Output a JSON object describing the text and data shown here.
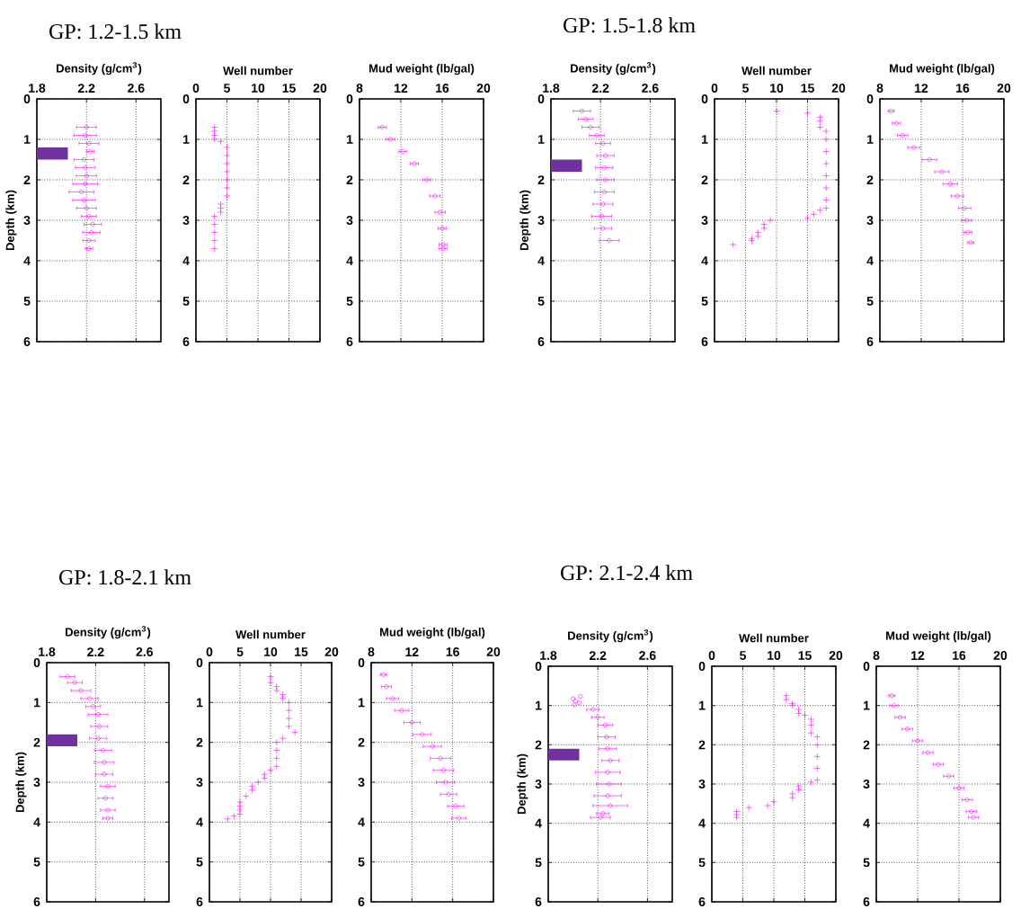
{
  "chart_data": [
    {
      "type": "scatter",
      "title": "GP: 1.2-1.5 km",
      "xlabel": "Density (g/cm$^{3}$)",
      "ylabel": "Depth (km)",
      "xlim": [
        1.8,
        2.8
      ],
      "xticks": [
        1.8,
        2.2,
        2.6
      ],
      "ylim": [
        6,
        0
      ],
      "yticks": [
        0,
        1,
        2,
        3,
        4,
        5,
        6
      ],
      "grid": true,
      "marker": "circle",
      "color": "#ff00ff",
      "x": [
        2.2,
        2.19,
        2.22,
        2.23,
        2.18,
        2.19,
        2.2,
        2.19,
        2.16,
        2.18,
        2.2,
        2.22,
        2.25,
        2.24,
        2.22,
        2.22
      ],
      "values": [
        0.7,
        0.9,
        1.1,
        1.3,
        1.5,
        1.7,
        1.9,
        2.1,
        2.3,
        2.5,
        2.7,
        2.9,
        3.1,
        3.3,
        3.5,
        3.7
      ],
      "xerrors": [
        0.08,
        0.09,
        0.08,
        0.03,
        0.08,
        0.08,
        0.08,
        0.1,
        0.1,
        0.09,
        0.08,
        0.06,
        0.07,
        0.07,
        0.05,
        0.03
      ],
      "bands": [
        {
          "axis": "y",
          "from": 1.2,
          "to": 1.5,
          "color": "#7030a0"
        }
      ]
    },
    {
      "type": "scatter",
      "xlabel": "Well number",
      "xlim": [
        0,
        20
      ],
      "xticks": [
        0,
        5,
        10,
        15,
        20
      ],
      "ylim": [
        6,
        0
      ],
      "yticks": [
        0,
        1,
        2,
        3,
        4,
        5,
        6
      ],
      "grid": true,
      "marker": "cross",
      "color": "#ff00ff",
      "x": [
        3,
        3,
        3,
        3,
        4,
        5,
        5,
        5,
        5,
        5,
        5,
        5,
        4,
        4,
        4,
        3,
        3,
        3,
        3,
        3
      ],
      "values": [
        0.7,
        0.8,
        0.9,
        1.0,
        1.05,
        1.2,
        1.4,
        1.6,
        1.8,
        2.0,
        2.2,
        2.4,
        2.6,
        2.7,
        2.8,
        2.9,
        3.1,
        3.3,
        3.5,
        3.7
      ]
    },
    {
      "type": "scatter",
      "xlabel": "Mud weight (lb/gal)",
      "xlim": [
        8,
        20
      ],
      "xticks": [
        8,
        12,
        16,
        20
      ],
      "ylim": [
        6,
        0
      ],
      "yticks": [
        0,
        1,
        2,
        3,
        4,
        5,
        6
      ],
      "grid": true,
      "marker": "circle",
      "color": "#ff00ff",
      "x": [
        10.2,
        11,
        12.2,
        13.3,
        14.5,
        15.3,
        15.8,
        16,
        16.1,
        16.1
      ],
      "values": [
        0.7,
        1.0,
        1.3,
        1.6,
        2.0,
        2.4,
        2.8,
        3.2,
        3.6,
        3.7
      ],
      "xerrors": [
        0.4,
        0.4,
        0.4,
        0.4,
        0.4,
        0.5,
        0.5,
        0.4,
        0.4,
        0.4
      ]
    },
    {
      "type": "scatter",
      "title": "GP: 1.5-1.8 km",
      "xlabel": "Density (g/cm$^{3}$)",
      "ylabel": "Depth (km)",
      "xlim": [
        1.8,
        2.8
      ],
      "xticks": [
        1.8,
        2.2,
        2.6
      ],
      "ylim": [
        6,
        0
      ],
      "yticks": [
        0,
        1,
        2,
        3,
        4,
        5,
        6
      ],
      "grid": true,
      "marker": "circle",
      "color": "#ff00ff",
      "x": [
        2.05,
        2.08,
        2.12,
        2.17,
        2.22,
        2.24,
        2.23,
        2.24,
        2.23,
        2.22,
        2.21,
        2.22,
        2.27
      ],
      "values": [
        0.3,
        0.5,
        0.7,
        0.9,
        1.1,
        1.4,
        1.7,
        2.0,
        2.3,
        2.6,
        2.9,
        3.2,
        3.5
      ],
      "xerrors": [
        0.07,
        0.06,
        0.07,
        0.06,
        0.06,
        0.07,
        0.07,
        0.07,
        0.08,
        0.08,
        0.08,
        0.07,
        0.08
      ],
      "bands": [
        {
          "axis": "y",
          "from": 1.5,
          "to": 1.8,
          "color": "#7030a0"
        }
      ]
    },
    {
      "type": "scatter",
      "xlabel": "Well number",
      "xlim": [
        0,
        20
      ],
      "xticks": [
        0,
        5,
        10,
        15,
        20
      ],
      "ylim": [
        6,
        0
      ],
      "yticks": [
        0,
        1,
        2,
        3,
        4,
        5,
        6
      ],
      "grid": true,
      "marker": "cross",
      "color": "#ff00ff",
      "x": [
        10,
        15,
        17,
        17,
        17,
        18,
        18,
        18,
        18,
        18,
        18,
        18,
        18,
        17,
        16,
        15,
        9,
        8,
        8,
        7,
        7,
        6,
        6,
        3
      ],
      "values": [
        0.3,
        0.35,
        0.45,
        0.55,
        0.7,
        0.8,
        1.0,
        1.3,
        1.6,
        1.9,
        2.2,
        2.5,
        2.7,
        2.75,
        2.85,
        2.95,
        3.0,
        3.1,
        3.2,
        3.3,
        3.4,
        3.45,
        3.5,
        3.6
      ]
    },
    {
      "type": "scatter",
      "xlabel": "Mud weight (lb/gal)",
      "xlim": [
        8,
        20
      ],
      "xticks": [
        8,
        12,
        16,
        20
      ],
      "ylim": [
        6,
        0
      ],
      "yticks": [
        0,
        1,
        2,
        3,
        4,
        5,
        6
      ],
      "grid": true,
      "marker": "circle",
      "color": "#ff00ff",
      "x": [
        9.1,
        9.6,
        10.2,
        11.3,
        12.8,
        14,
        14.8,
        15.5,
        16.2,
        16.4,
        16.5,
        16.8
      ],
      "values": [
        0.3,
        0.6,
        0.9,
        1.2,
        1.5,
        1.8,
        2.1,
        2.4,
        2.7,
        3.0,
        3.3,
        3.55
      ],
      "xerrors": [
        0.3,
        0.4,
        0.5,
        0.6,
        0.7,
        0.7,
        0.7,
        0.6,
        0.6,
        0.5,
        0.4,
        0.3
      ]
    },
    {
      "type": "scatter",
      "title": "GP: 1.8-2.1 km",
      "xlabel": "Density (g/cm$^{3}$)",
      "ylabel": "Depth (km)",
      "xlim": [
        1.8,
        2.8
      ],
      "xticks": [
        1.8,
        2.2,
        2.6
      ],
      "ylim": [
        6,
        0
      ],
      "yticks": [
        0,
        1,
        2,
        3,
        4,
        5,
        6
      ],
      "grid": true,
      "marker": "circle",
      "color": "#ff00ff",
      "x": [
        1.97,
        2.03,
        2.08,
        2.15,
        2.18,
        2.22,
        2.23,
        2.22,
        2.26,
        2.27,
        2.27,
        2.3,
        2.28,
        2.3,
        2.3
      ],
      "values": [
        0.35,
        0.5,
        0.7,
        0.9,
        1.1,
        1.3,
        1.6,
        1.9,
        2.2,
        2.5,
        2.8,
        3.1,
        3.4,
        3.7,
        3.9
      ],
      "xerrors": [
        0.06,
        0.06,
        0.08,
        0.07,
        0.06,
        0.08,
        0.07,
        0.07,
        0.07,
        0.08,
        0.07,
        0.06,
        0.06,
        0.06,
        0.04
      ],
      "bands": [
        {
          "axis": "y",
          "from": 1.8,
          "to": 2.1,
          "color": "#7030a0"
        }
      ]
    },
    {
      "type": "scatter",
      "xlabel": "Well number",
      "xlim": [
        0,
        20
      ],
      "xticks": [
        0,
        5,
        10,
        15,
        20
      ],
      "ylim": [
        6,
        0
      ],
      "yticks": [
        0,
        1,
        2,
        3,
        4,
        5,
        6
      ],
      "grid": true,
      "marker": "cross",
      "color": "#ff00ff",
      "x": [
        10,
        10,
        11,
        11,
        12,
        12,
        13,
        13,
        13,
        13,
        14,
        12,
        11,
        11,
        11,
        11,
        10,
        9,
        9,
        8,
        7,
        7,
        6,
        5,
        5,
        5,
        5,
        4,
        3
      ],
      "values": [
        0.35,
        0.5,
        0.6,
        0.7,
        0.8,
        0.9,
        1.0,
        1.2,
        1.4,
        1.6,
        1.75,
        1.9,
        2.0,
        2.2,
        2.4,
        2.6,
        2.7,
        2.8,
        2.9,
        3.0,
        3.1,
        3.2,
        3.35,
        3.5,
        3.6,
        3.7,
        3.8,
        3.85,
        3.92
      ]
    },
    {
      "type": "scatter",
      "xlabel": "Mud weight (lb/gal)",
      "xlim": [
        8,
        20
      ],
      "xticks": [
        8,
        12,
        16,
        20
      ],
      "ylim": [
        6,
        0
      ],
      "yticks": [
        0,
        1,
        2,
        3,
        4,
        5,
        6
      ],
      "grid": true,
      "marker": "circle",
      "color": "#ff00ff",
      "x": [
        9.2,
        9.5,
        10.1,
        11,
        12,
        13,
        14,
        14.8,
        15.1,
        15.3,
        15.6,
        16.3,
        16.6
      ],
      "values": [
        0.3,
        0.6,
        0.9,
        1.2,
        1.5,
        1.8,
        2.1,
        2.4,
        2.7,
        3.0,
        3.3,
        3.6,
        3.9
      ],
      "xerrors": [
        0.3,
        0.5,
        0.6,
        0.7,
        0.8,
        0.9,
        0.9,
        1.0,
        1.0,
        0.9,
        0.8,
        0.8,
        0.7
      ]
    },
    {
      "type": "scatter",
      "title": "GP: 2.1-2.4 km",
      "xlabel": "Density (g/cm$^{3}$)",
      "ylabel": "Depth (km)",
      "xlim": [
        1.8,
        2.8
      ],
      "xticks": [
        1.8,
        2.2,
        2.6
      ],
      "ylim": [
        6,
        0
      ],
      "yticks": [
        0,
        1,
        2,
        3,
        4,
        5,
        6
      ],
      "grid": true,
      "marker": "circle",
      "color": "#ff00ff",
      "x": [
        2.06,
        2.0,
        2.02,
        2.05,
        2.01,
        2.16,
        2.2,
        2.26,
        2.27,
        2.28,
        2.3,
        2.28,
        2.29,
        2.28,
        2.3,
        2.24,
        2.22
      ],
      "values": [
        0.77,
        0.83,
        0.88,
        0.93,
        0.98,
        1.1,
        1.3,
        1.5,
        1.8,
        2.1,
        2.4,
        2.7,
        3.0,
        3.3,
        3.55,
        3.75,
        3.85
      ],
      "xerrors": [
        null,
        null,
        null,
        null,
        null,
        0.05,
        0.05,
        0.06,
        0.07,
        0.07,
        0.07,
        0.1,
        0.1,
        0.11,
        0.14,
        0.05,
        0.08
      ],
      "bands": [
        {
          "axis": "y",
          "from": 2.1,
          "to": 2.4,
          "color": "#7030a0"
        }
      ]
    },
    {
      "type": "scatter",
      "xlabel": "Well number",
      "xlim": [
        0,
        20
      ],
      "xticks": [
        0,
        5,
        10,
        15,
        20
      ],
      "ylim": [
        6,
        0
      ],
      "yticks": [
        0,
        1,
        2,
        3,
        4,
        5,
        6
      ],
      "grid": true,
      "marker": "cross",
      "color": "#ff00ff",
      "x": [
        12,
        12,
        13,
        13,
        14,
        14,
        15,
        16,
        16,
        16,
        17,
        17,
        17,
        17,
        17,
        16,
        14,
        14,
        13,
        13,
        10,
        9,
        6,
        4,
        4,
        4
      ],
      "values": [
        0.75,
        0.85,
        0.95,
        1.0,
        1.1,
        1.2,
        1.25,
        1.35,
        1.5,
        1.7,
        1.8,
        2.0,
        2.3,
        2.6,
        2.9,
        2.95,
        3.05,
        3.15,
        3.25,
        3.35,
        3.45,
        3.55,
        3.6,
        3.7,
        3.78,
        3.85
      ]
    },
    {
      "type": "scatter",
      "xlabel": "Mud weight (lb/gal)",
      "xlim": [
        8,
        20
      ],
      "xticks": [
        8,
        12,
        16,
        20
      ],
      "ylim": [
        6,
        0
      ],
      "yticks": [
        0,
        1,
        2,
        3,
        4,
        5,
        6
      ],
      "grid": true,
      "marker": "circle",
      "color": "#ff00ff",
      "x": [
        9.5,
        9.7,
        10.3,
        11,
        12,
        13,
        14,
        15,
        16,
        16.8,
        17.2,
        17.4
      ],
      "values": [
        0.75,
        1.0,
        1.3,
        1.6,
        1.9,
        2.2,
        2.5,
        2.8,
        3.1,
        3.4,
        3.7,
        3.85
      ],
      "xerrors": [
        0.3,
        0.4,
        0.5,
        0.5,
        0.5,
        0.5,
        0.5,
        0.5,
        0.5,
        0.5,
        0.5,
        0.5
      ]
    }
  ]
}
